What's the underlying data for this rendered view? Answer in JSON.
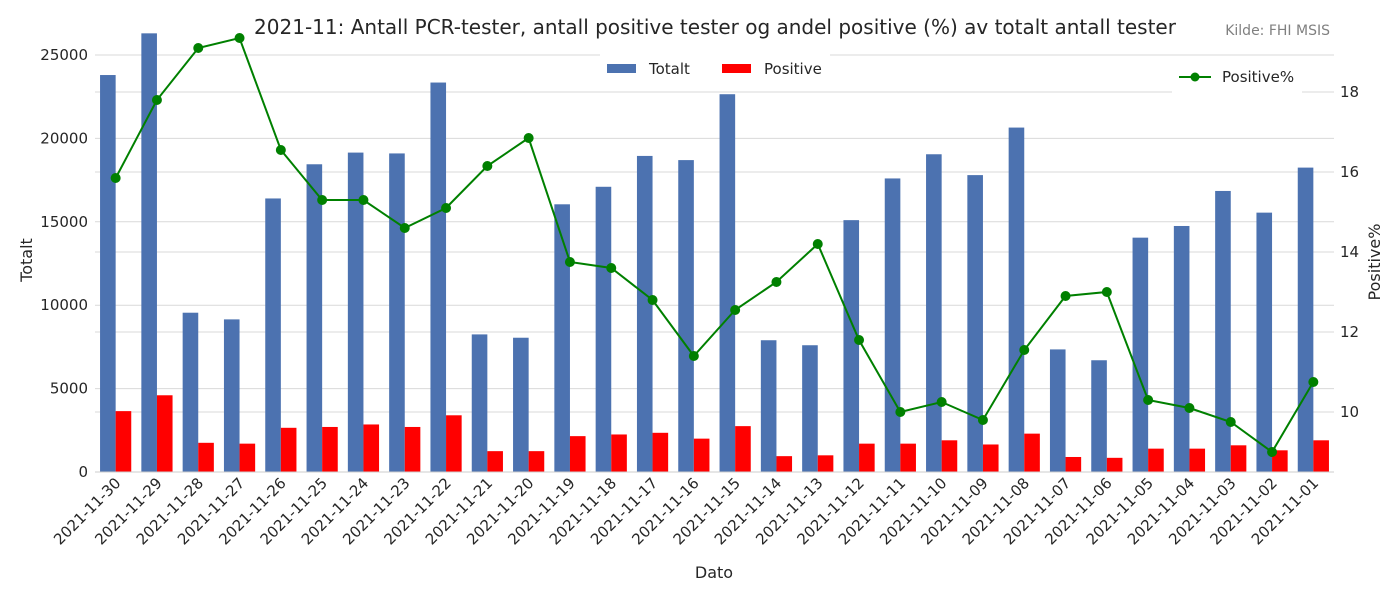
{
  "chart_data": {
    "type": "bar",
    "title": "2021-11: Antall PCR-tester, antall positive tester og andel positive (%) av totalt antall tester",
    "source": "Kilde: FHI MSIS",
    "xlabel": "Dato",
    "ylabel": "Totalt",
    "y2label": "Positive%",
    "ylim": [
      0,
      26500
    ],
    "y2lim": [
      8.5,
      19.55
    ],
    "yticks": [
      0,
      5000,
      10000,
      15000,
      20000,
      25000
    ],
    "y2ticks": [
      10,
      12,
      14,
      16,
      18
    ],
    "grid": true,
    "legend": {
      "bars": "top-center",
      "line": "top-right"
    },
    "colors": {
      "totalt": "#4c72b0",
      "positive": "#ff0000",
      "positive_pct": "#008000"
    },
    "categories": [
      "2021-11-30",
      "2021-11-29",
      "2021-11-28",
      "2021-11-27",
      "2021-11-26",
      "2021-11-25",
      "2021-11-24",
      "2021-11-23",
      "2021-11-22",
      "2021-11-21",
      "2021-11-20",
      "2021-11-19",
      "2021-11-18",
      "2021-11-17",
      "2021-11-16",
      "2021-11-15",
      "2021-11-14",
      "2021-11-13",
      "2021-11-12",
      "2021-11-11",
      "2021-11-10",
      "2021-11-09",
      "2021-11-08",
      "2021-11-07",
      "2021-11-06",
      "2021-11-05",
      "2021-11-04",
      "2021-11-03",
      "2021-11-02",
      "2021-11-01"
    ],
    "series": [
      {
        "name": "Totalt",
        "axis": "left",
        "kind": "bar",
        "values": [
          23800,
          26300,
          9550,
          9150,
          16400,
          18450,
          19150,
          19100,
          23350,
          8250,
          8050,
          16050,
          17100,
          18950,
          18700,
          22650,
          7900,
          7600,
          15100,
          17600,
          19050,
          17800,
          20650,
          7350,
          6700,
          14050,
          14750,
          16850,
          15550,
          18250
        ]
      },
      {
        "name": "Positive",
        "axis": "left",
        "kind": "bar",
        "values": [
          3650,
          4600,
          1750,
          1700,
          2650,
          2700,
          2850,
          2700,
          3400,
          1250,
          1250,
          2150,
          2250,
          2350,
          2000,
          2750,
          950,
          1000,
          1700,
          1700,
          1900,
          1650,
          2300,
          900,
          850,
          1400,
          1400,
          1600,
          1300,
          1900
        ]
      },
      {
        "name": "Positive%",
        "axis": "right",
        "kind": "line",
        "values": [
          15.85,
          17.8,
          19.1,
          19.35,
          16.55,
          15.3,
          15.3,
          14.6,
          15.1,
          16.15,
          16.85,
          13.75,
          13.6,
          12.8,
          11.4,
          12.55,
          13.25,
          14.2,
          11.8,
          10.0,
          10.25,
          9.8,
          11.55,
          12.9,
          13.0,
          10.3,
          10.1,
          9.75,
          9.0,
          10.75
        ]
      }
    ]
  }
}
